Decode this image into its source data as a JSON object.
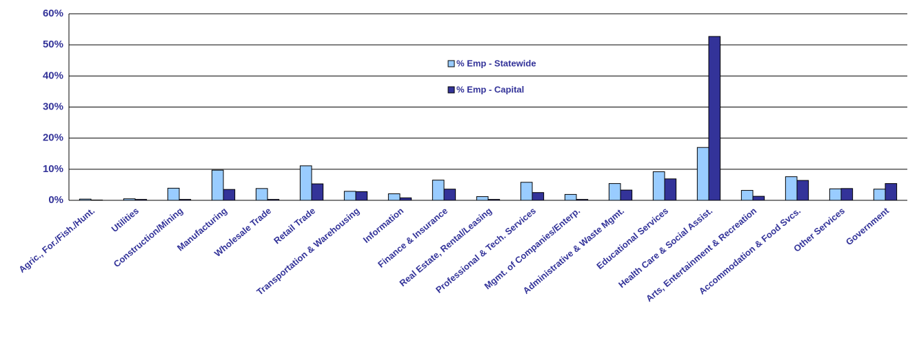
{
  "chart_data": {
    "type": "bar",
    "categories": [
      "Agric., For./Fish./Hunt.",
      "Utilities",
      "Construction/Mining",
      "Manufacturing",
      "Wholesale Trade",
      "Retail Trade",
      "Transportation & Warehousing",
      "Information",
      "Finance & Insurance",
      "Real Estate, Rental/Leasing",
      "Professional & Tech. Services",
      "Mgmt. of Companies/Enterp.",
      "Administrative & Waste Mgmt.",
      "Educational Services",
      "Health Care & Social Assist.",
      "Arts, Entertainment & Recreation",
      "Accommodation & Food Svcs.",
      "Other Services",
      "Government"
    ],
    "series": [
      {
        "name": "% Emp - Statewide",
        "color": "#99ccff",
        "values": [
          0.4,
          0.5,
          3.9,
          9.7,
          3.8,
          11.1,
          2.9,
          2.1,
          6.5,
          1.2,
          5.8,
          1.9,
          5.4,
          9.2,
          17.0,
          3.2,
          7.6,
          3.7,
          3.6
        ]
      },
      {
        "name": "% Emp - Capital",
        "color": "#333399",
        "values": [
          0.1,
          0.3,
          0.3,
          3.5,
          0.3,
          5.3,
          2.8,
          0.8,
          3.6,
          0.3,
          2.5,
          0.3,
          3.3,
          6.9,
          52.7,
          1.3,
          6.4,
          3.8,
          5.4
        ]
      }
    ],
    "ylim": [
      0,
      60
    ],
    "yticks": [
      {
        "value": 0,
        "label": "0%"
      },
      {
        "value": 10,
        "label": "10%"
      },
      {
        "value": 20,
        "label": "20%"
      },
      {
        "value": 30,
        "label": "30%"
      },
      {
        "value": 40,
        "label": "40%"
      },
      {
        "value": 50,
        "label": "50%"
      },
      {
        "value": 60,
        "label": "60%"
      }
    ],
    "grid": true
  }
}
